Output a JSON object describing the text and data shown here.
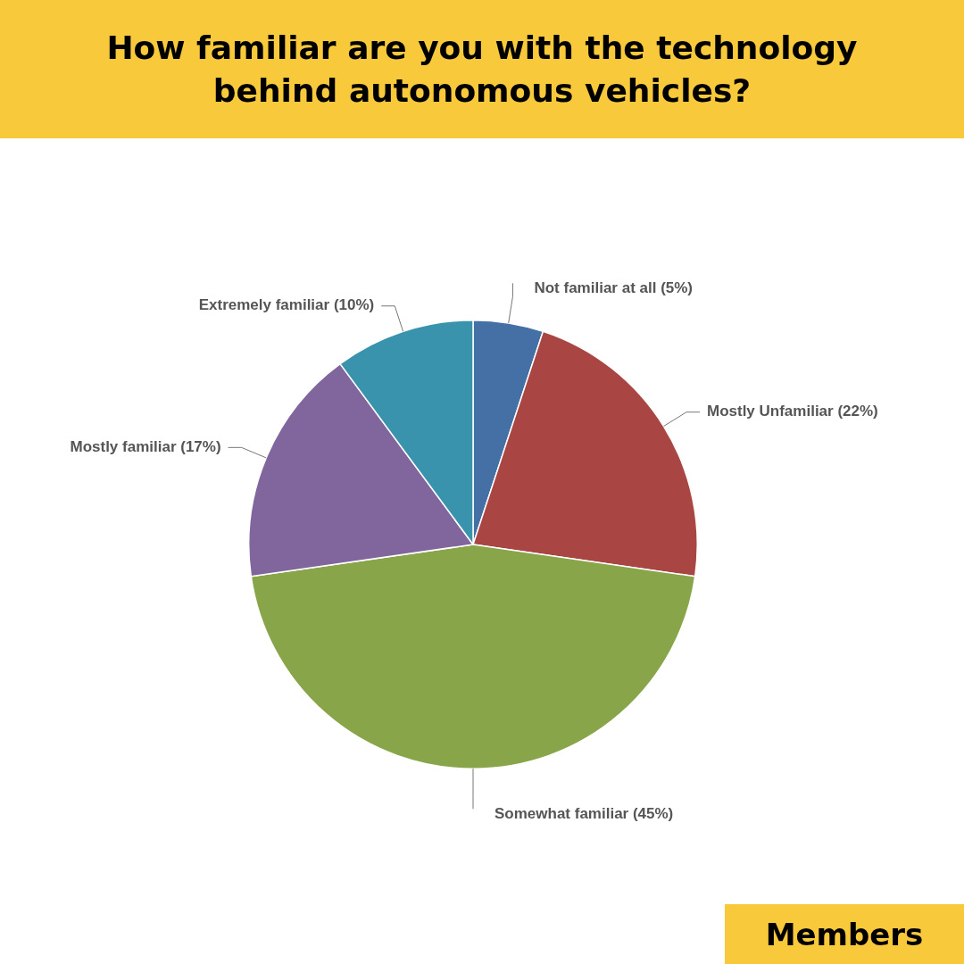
{
  "chart_data": {
    "type": "pie",
    "title": "How familiar are you with the technology behind autonomous vehicles?",
    "categories": [
      "Not familiar at all (5%)",
      "Mostly Unfamiliar (22%)",
      "Somewhat familiar (45%)",
      "Mostly familiar (17%)",
      "Extremely familiar (10%)"
    ],
    "values": [
      5,
      22,
      45,
      17,
      10
    ],
    "colors": [
      "#4470a5",
      "#a94643",
      "#88a54a",
      "#80669d",
      "#3a93ad"
    ],
    "annotations": [
      "Members"
    ],
    "legend": false
  }
}
